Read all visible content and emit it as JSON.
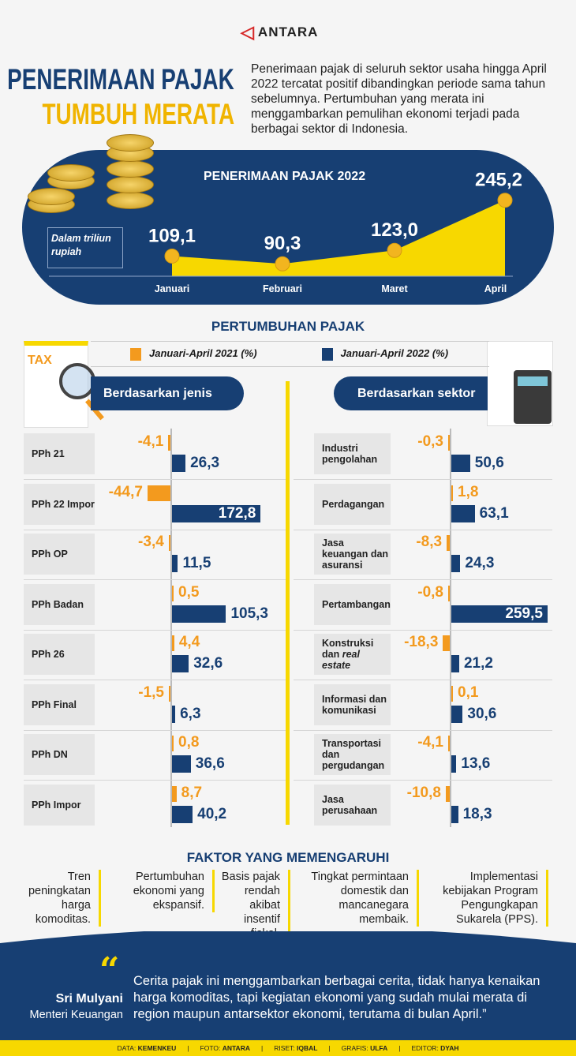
{
  "logo": {
    "text": "ANTARA"
  },
  "title": {
    "line1": "PENERIMAAN PAJAK",
    "line2": "TUMBUH MERATA"
  },
  "intro": "Penerimaan pajak di seluruh  sektor usaha hingga April 2022 tercatat positif dibandingkan periode sama tahun sebelumnya. Pertumbuhan yang merata ini menggambarkan pemulihan ekonomi terjadi pada berbagai sektor di Indonesia.",
  "colors": {
    "navy": "#173f73",
    "yellow": "#f7d800",
    "orange": "#f39a1e",
    "gold": "#f0b400"
  },
  "chart_data": [
    {
      "type": "area",
      "title": "PENERIMAAN PAJAK 2022",
      "unit": "Dalam triliun rupiah",
      "categories": [
        "Januari",
        "Februari",
        "Maret",
        "April"
      ],
      "values": [
        109.1,
        90.3,
        123.0,
        245.2
      ],
      "labels": [
        "109,1",
        "90,3",
        "123,0",
        "245,2"
      ]
    },
    {
      "type": "bar",
      "title": "PERTUMBUHAN PAJAK",
      "subtitle": "Berdasarkan jenis",
      "legend": [
        "Januari-April 2021 (%)",
        "Januari-April 2022 (%)"
      ],
      "categories": [
        "PPh 21",
        "PPh 22 Impor",
        "PPh OP",
        "PPh Badan",
        "PPh 26",
        "PPh Final",
        "PPh DN",
        "PPh Impor"
      ],
      "series": [
        {
          "name": "Januari-April 2021 (%)",
          "values": [
            -4.1,
            -44.7,
            -3.4,
            0.5,
            4.4,
            -1.5,
            0.8,
            8.7
          ],
          "labels": [
            "-4,1",
            "-44,7",
            "-3,4",
            "0,5",
            "4,4",
            "-1,5",
            "0,8",
            "8,7"
          ]
        },
        {
          "name": "Januari-April 2022 (%)",
          "values": [
            26.3,
            172.8,
            11.5,
            105.3,
            32.6,
            6.3,
            36.6,
            40.2
          ],
          "labels": [
            "26,3",
            "172,8",
            "11,5",
            "105,3",
            "32,6",
            "6,3",
            "36,6",
            "40,2"
          ]
        }
      ]
    },
    {
      "type": "bar",
      "subtitle": "Berdasarkan sektor",
      "categories": [
        "Industri pengolahan",
        "Perdagangan",
        "Jasa keuangan dan asuransi",
        "Pertambangan",
        "Konstruksi dan real estate",
        "Informasi dan komunikasi",
        "Transportasi dan pergudangan",
        "Jasa perusahaan"
      ],
      "series": [
        {
          "name": "Januari-April 2021 (%)",
          "values": [
            -0.3,
            1.8,
            -8.3,
            -0.8,
            -18.3,
            0.1,
            -4.1,
            -10.8
          ],
          "labels": [
            "-0,3",
            "1,8",
            "-8,3",
            "-0,8",
            "-18,3",
            "0,1",
            "-4,1",
            "-10,8"
          ]
        },
        {
          "name": "Januari-April 2022 (%)",
          "values": [
            50.6,
            63.1,
            24.3,
            259.5,
            21.2,
            30.6,
            13.6,
            18.3
          ],
          "labels": [
            "50,6",
            "63,1",
            "24,3",
            "259,5",
            "21,2",
            "30,6",
            "13,6",
            "18,3"
          ]
        }
      ]
    }
  ],
  "factors": {
    "title": "FAKTOR YANG MEMENGARUHI",
    "items": [
      "Tren peningkatan harga komoditas.",
      "Pertumbuhan ekonomi yang ekspansif.",
      "Basis pajak rendah akibat insentif fiskal.",
      "Tingkat permintaan domestik dan mancanegara membaik.",
      "Implementasi kebijakan Program Pengungkapan Sukarela (PPS)."
    ]
  },
  "quote": {
    "name": "Sri Mulyani",
    "role": "Menteri Keuangan",
    "text": "Cerita pajak ini menggambarkan berbagai cerita, tidak hanya kenaikan harga komoditas, tapi kegiatan ekonomi yang sudah mulai merata di region maupun antarsektor ekonomi, terutama di bulan April.”"
  },
  "credits": [
    "DATA: KEMENKEU",
    "FOTO: ANTARA",
    "RISET: IQBAL",
    "GRAFIS: ULFA",
    "EDITOR: DYAH"
  ]
}
